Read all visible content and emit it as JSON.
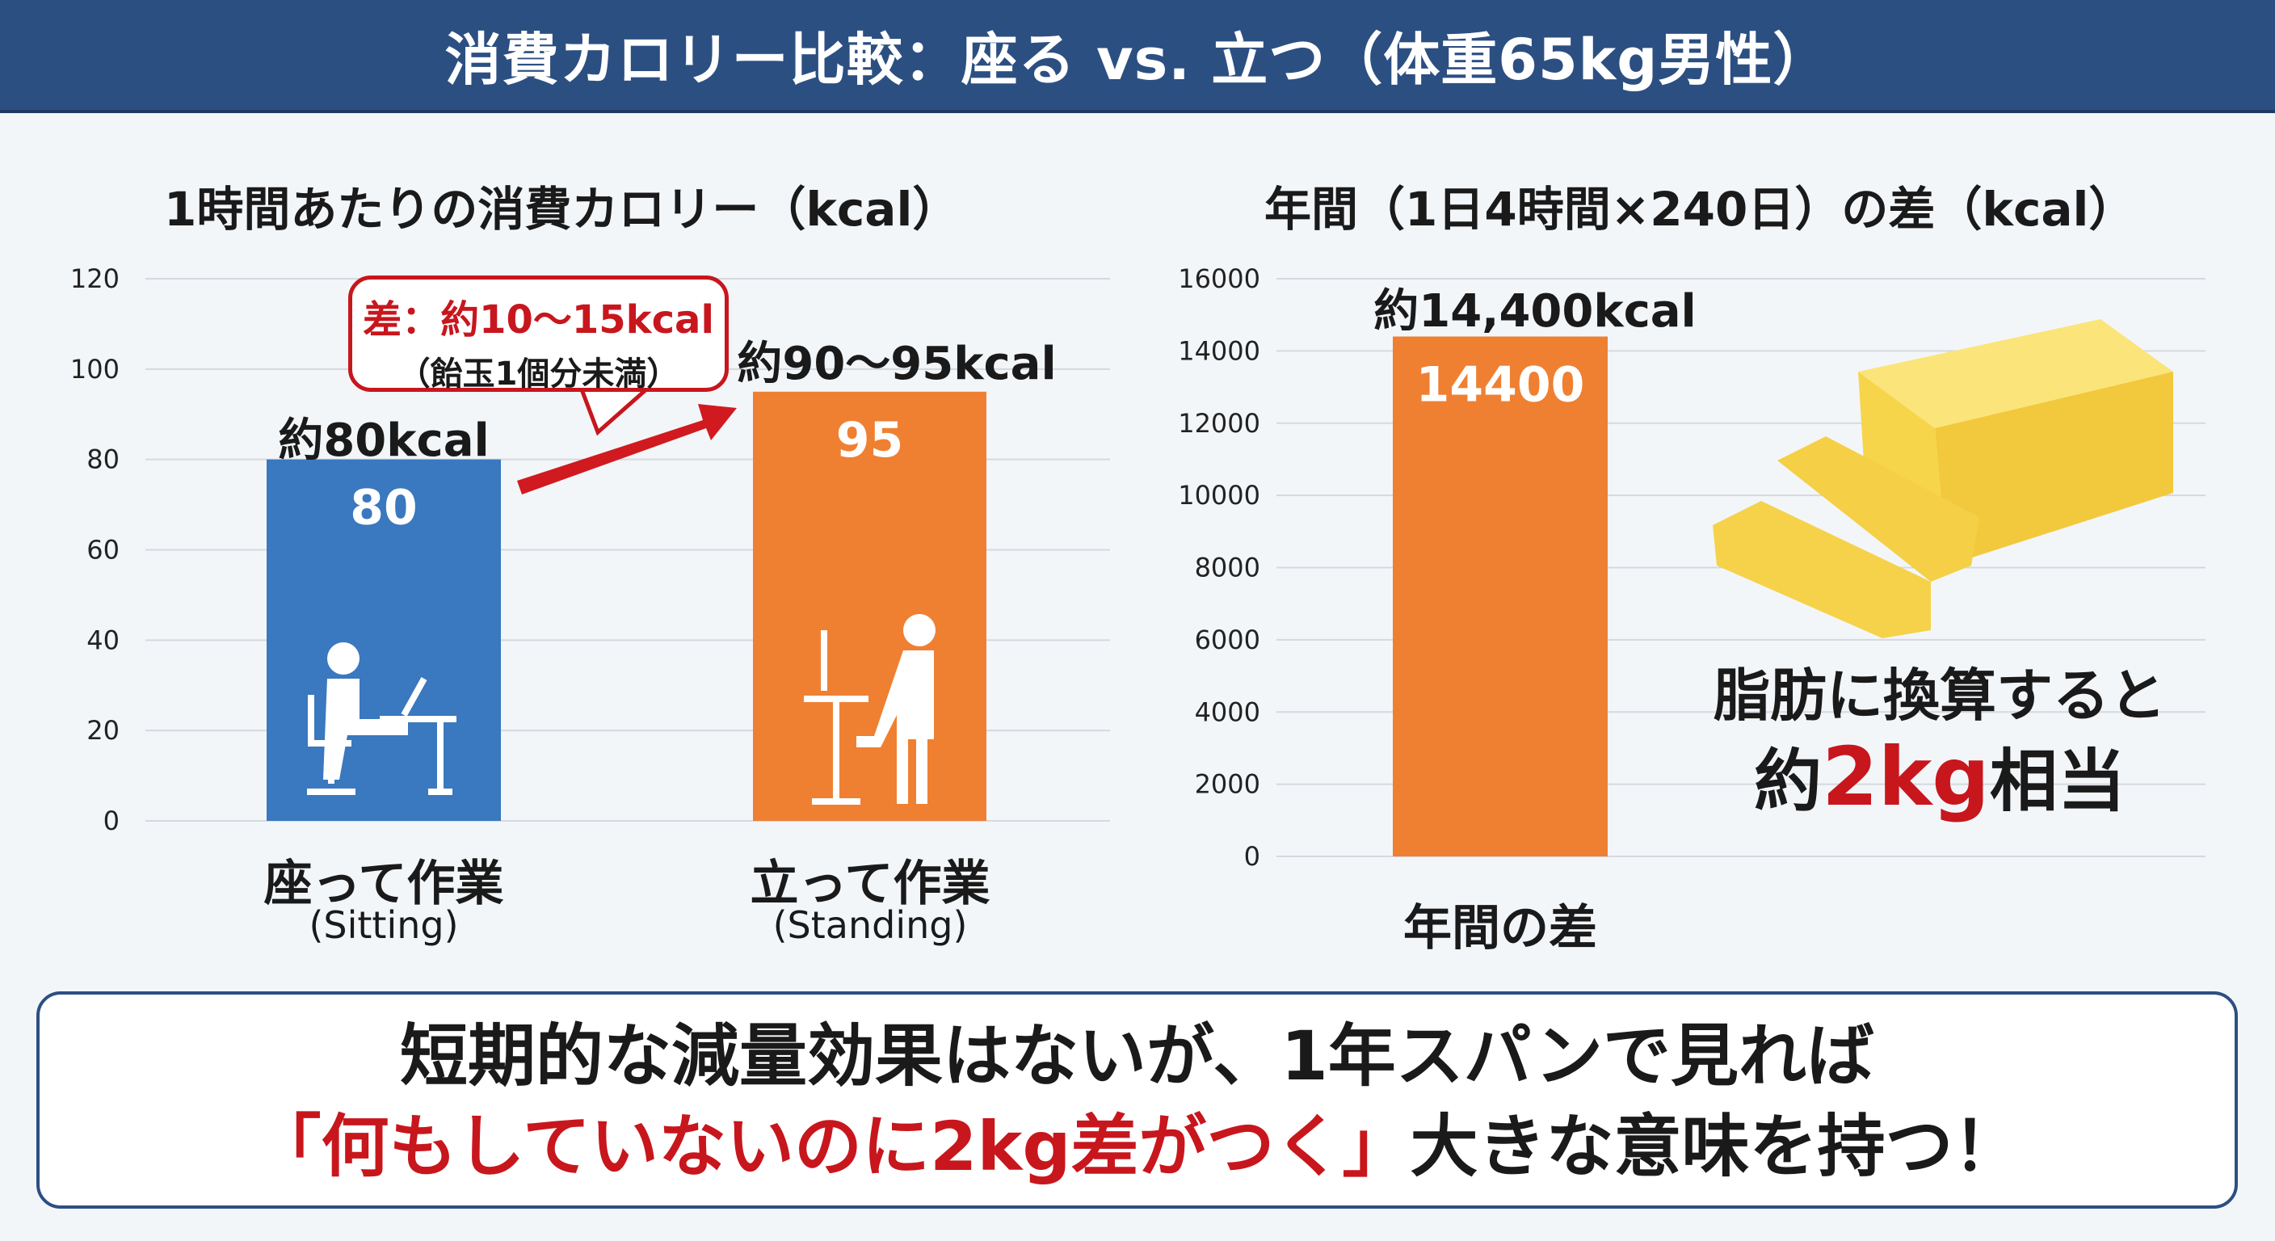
{
  "header": {
    "title": "消費カロリー比較：座る vs. 立つ（体重65kg男性）"
  },
  "colors": {
    "header": "#2c4f82",
    "sitting": "#3a78bf",
    "standing": "#ef8032",
    "accent_red": "#c8161d",
    "butter": "#f7d54a"
  },
  "chart_data": [
    {
      "type": "bar",
      "title": "1時間あたりの消費カロリー（kcal）",
      "ylim": [
        0,
        120
      ],
      "yticks": [
        0,
        20,
        40,
        60,
        80,
        100,
        120
      ],
      "grid": true,
      "categories": [
        "座って作業",
        "立って作業"
      ],
      "category_sublabels": [
        "(Sitting)",
        "(Standing)"
      ],
      "values": [
        80,
        95
      ],
      "data_labels": [
        "80",
        "95"
      ],
      "top_labels": [
        "約80kcal",
        "約90〜95kcal"
      ],
      "icons": [
        "sitting-person-laptop-icon",
        "standing-desk-person-icon"
      ],
      "annotation": {
        "line1": "差：約10〜15kcal",
        "line2": "（飴玉1個分未満）"
      }
    },
    {
      "type": "bar",
      "title": "年間（1日4時間×240日）の差（kcal）",
      "ylim": [
        0,
        16000
      ],
      "yticks": [
        0,
        2000,
        4000,
        6000,
        8000,
        10000,
        12000,
        14000,
        16000
      ],
      "grid": true,
      "categories": [
        "年間の差"
      ],
      "values": [
        14400
      ],
      "data_labels": [
        "14400"
      ],
      "top_labels": [
        "約14,400kcal"
      ]
    }
  ],
  "fat": {
    "line1": "脂肪に換算すると",
    "prefix": "約",
    "highlight": "2kg",
    "suffix": "相当",
    "icon": "butter-block-icon"
  },
  "bottom": {
    "line1": "短期的な減量効果はないが、1年スパンで見れば",
    "line2_red": "「何もしていないのに2kg差がつく」",
    "line2_rest": "大きな意味を持つ！"
  }
}
